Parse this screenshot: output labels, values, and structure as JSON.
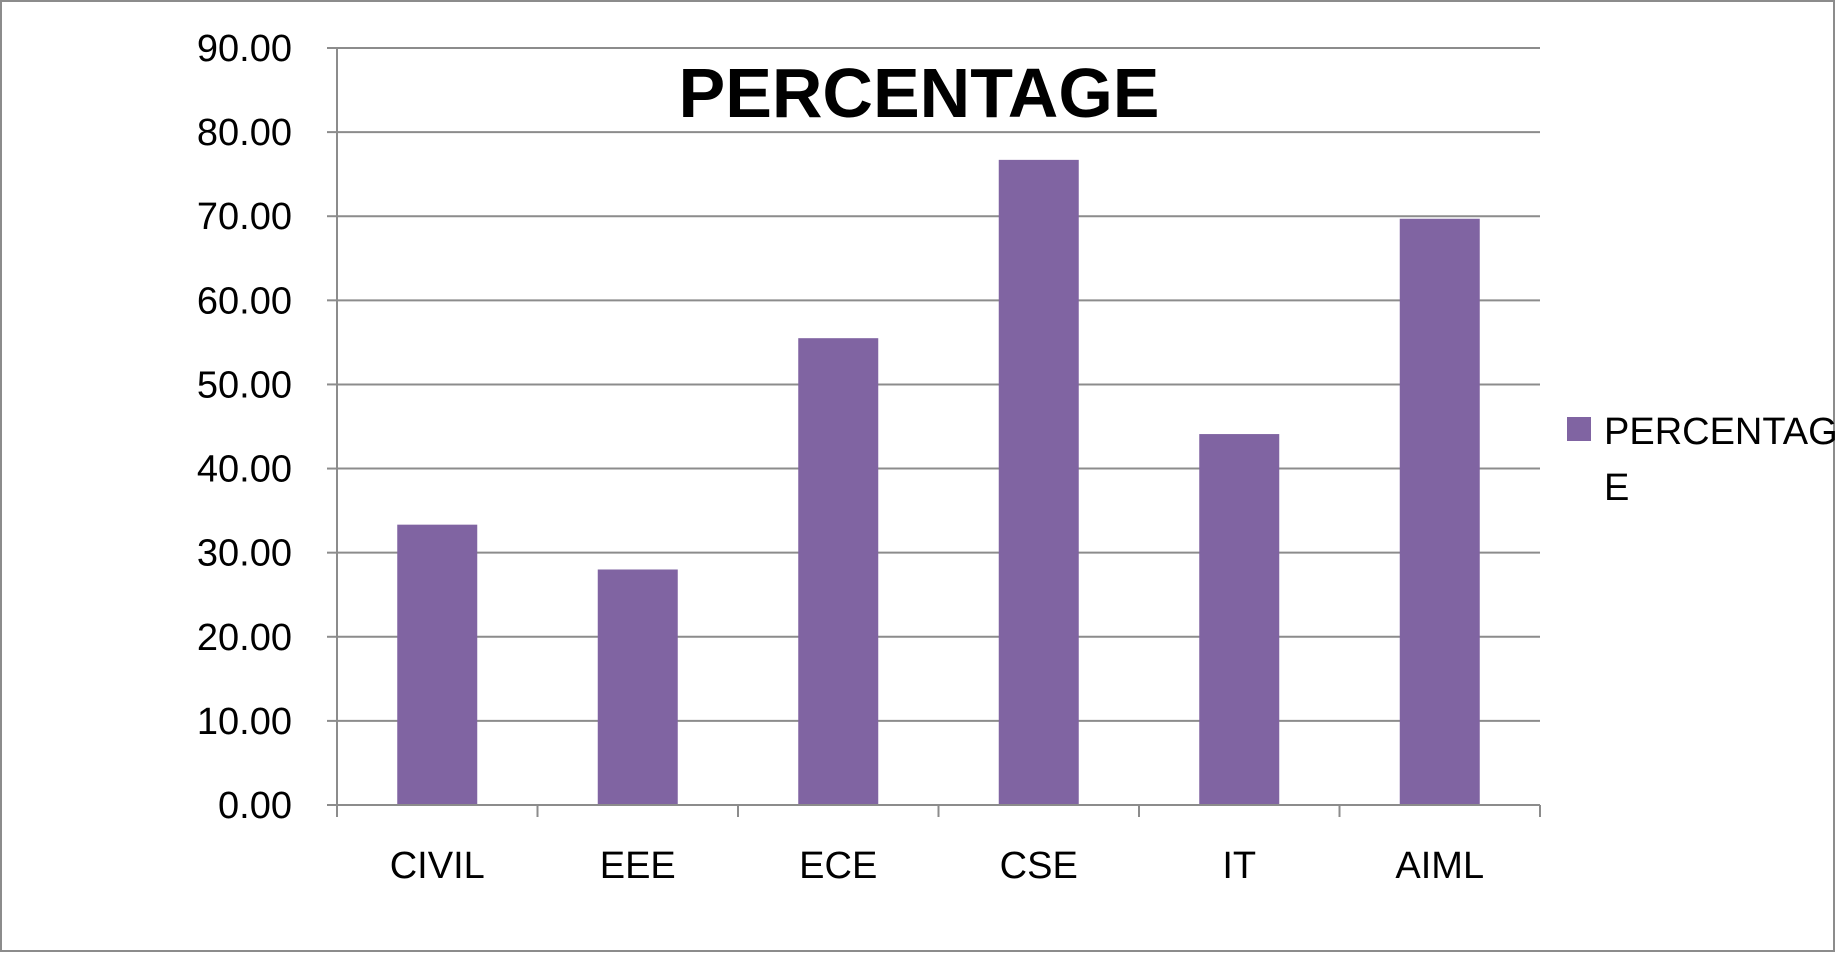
{
  "chart_data": {
    "type": "bar",
    "title": "PERCENTAGE",
    "xlabel": "",
    "ylabel": "",
    "categories": [
      "CIVIL",
      "EEE",
      "ECE",
      "CSE",
      "IT",
      "AIML"
    ],
    "series": [
      {
        "name": "PERCENTAGE",
        "color": "#8064a2",
        "values": [
          33.33,
          28.0,
          55.5,
          76.7,
          44.1,
          69.7
        ]
      }
    ],
    "ylim": [
      0,
      90
    ],
    "ytick_step": 10,
    "ytick_labels": [
      "0.00",
      "10.00",
      "20.00",
      "30.00",
      "40.00",
      "50.00",
      "60.00",
      "70.00",
      "80.00",
      "90.00"
    ],
    "grid": true,
    "gridline_color": "#8c8c8c",
    "legend_position": "right",
    "legend_lines": [
      "PERCENTAG",
      "E"
    ]
  }
}
